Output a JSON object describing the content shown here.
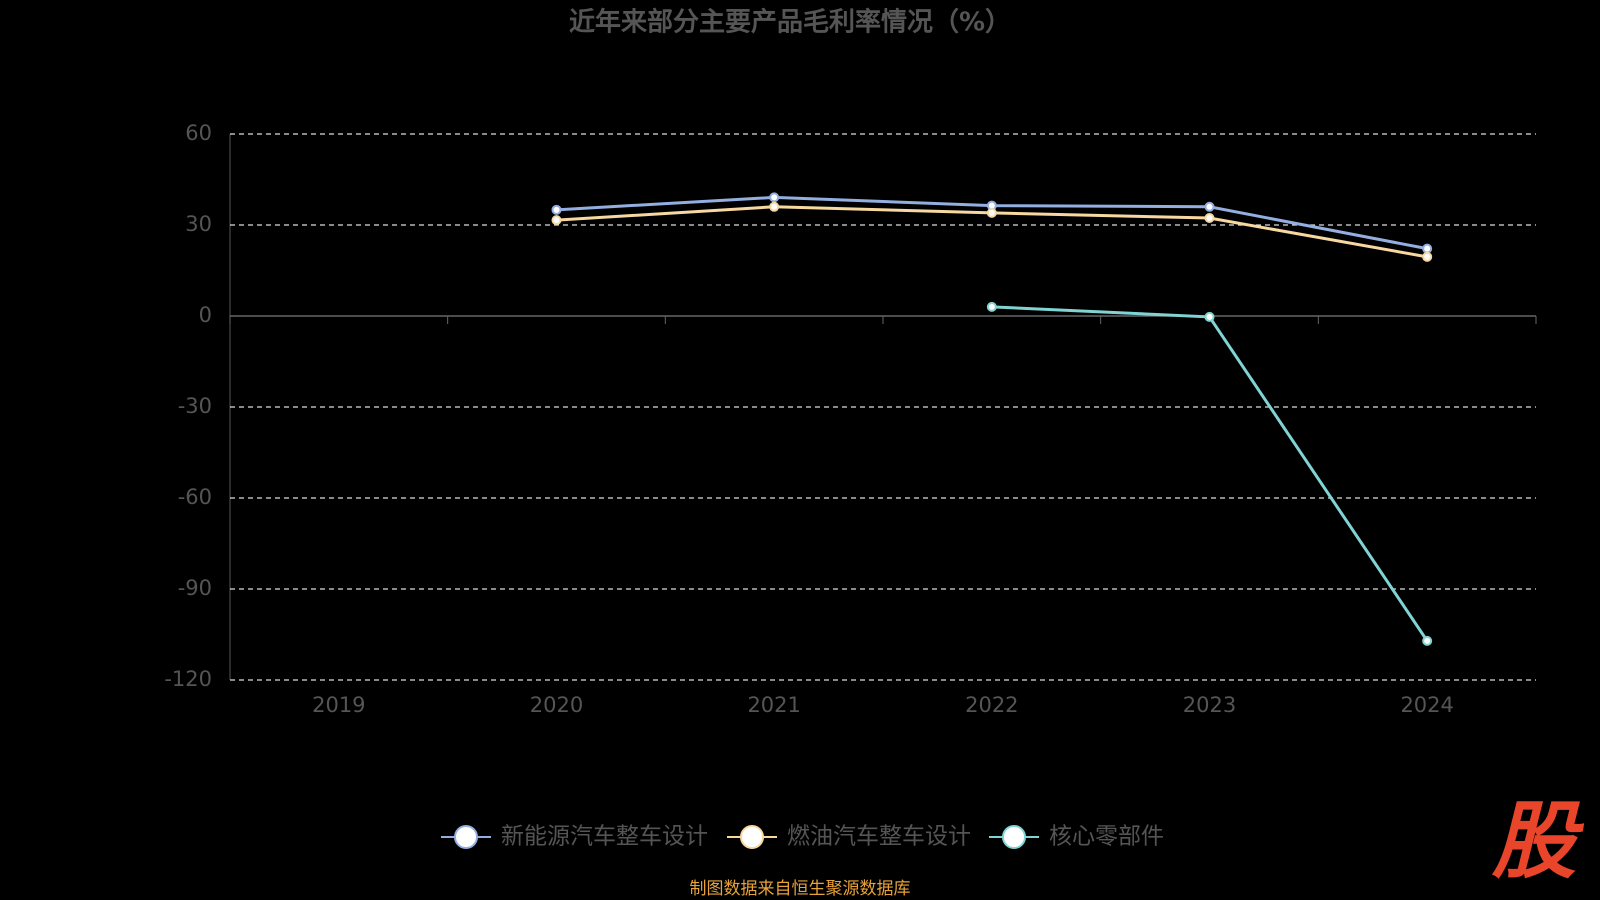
{
  "chart_data": {
    "type": "line",
    "title": "近年来部分主要产品毛利率情况（%）",
    "categories": [
      "2019",
      "2020",
      "2021",
      "2022",
      "2023",
      "2024"
    ],
    "series": [
      {
        "name": "新能源汽车整车设计",
        "color": "#93aee0",
        "values": [
          null,
          35.0,
          39.1,
          36.4,
          36.0,
          22.2
        ]
      },
      {
        "name": "燃油汽车整车设计",
        "color": "#f7d8a0",
        "values": [
          null,
          31.6,
          36.0,
          34.0,
          32.3,
          19.5
        ]
      },
      {
        "name": "核心零部件",
        "color": "#80d4d4",
        "values": [
          null,
          null,
          null,
          3.0,
          -0.3,
          -107.1
        ]
      }
    ],
    "ylim": [
      -120,
      60
    ],
    "yticks": [
      60,
      30,
      0,
      -30,
      -60,
      -90,
      -120
    ],
    "grid": true,
    "legend": "bottom",
    "source": "制图数据来自恒生聚源数据库",
    "logo": "股"
  }
}
